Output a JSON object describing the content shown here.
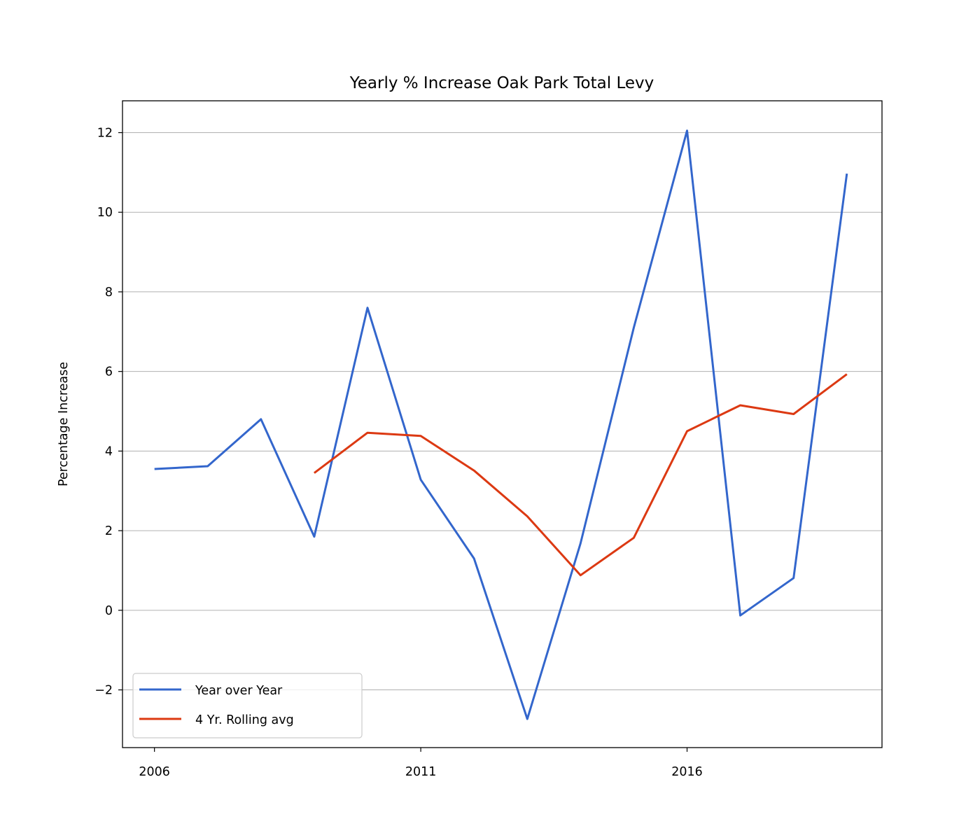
{
  "chart_data": {
    "type": "line",
    "title": "Yearly % Increase Oak Park Total Levy",
    "xlabel": "",
    "ylabel": "Percentage Increase",
    "xlim": [
      2005.4,
      2019.66
    ],
    "ylim": [
      -3.45,
      12.8
    ],
    "x_ticks": [
      2006,
      2011,
      2016
    ],
    "y_ticks": [
      -2,
      0,
      2,
      4,
      6,
      8,
      10,
      12
    ],
    "y_tick_labels": [
      "−2",
      "0",
      "2",
      "4",
      "6",
      "8",
      "10",
      "12"
    ],
    "grid": "y",
    "legend_position": "lower-left",
    "series": [
      {
        "name": "Year over Year",
        "color": "#3366cc",
        "x": [
          2006,
          2007,
          2008,
          2009,
          2010,
          2011,
          2012,
          2013,
          2014,
          2015,
          2016,
          2017,
          2018,
          2019
        ],
        "values": [
          3.55,
          3.62,
          4.8,
          1.85,
          7.6,
          3.28,
          1.3,
          -2.73,
          1.68,
          7.1,
          12.05,
          -0.13,
          0.81,
          10.97
        ]
      },
      {
        "name": "4 Yr. Rolling avg",
        "color": "#dc3912",
        "x": [
          2009,
          2010,
          2011,
          2012,
          2013,
          2014,
          2015,
          2016,
          2017,
          2018,
          2019
        ],
        "values": [
          3.45,
          4.46,
          4.38,
          3.51,
          2.36,
          0.88,
          1.82,
          4.5,
          5.15,
          4.93,
          5.93
        ]
      }
    ]
  }
}
